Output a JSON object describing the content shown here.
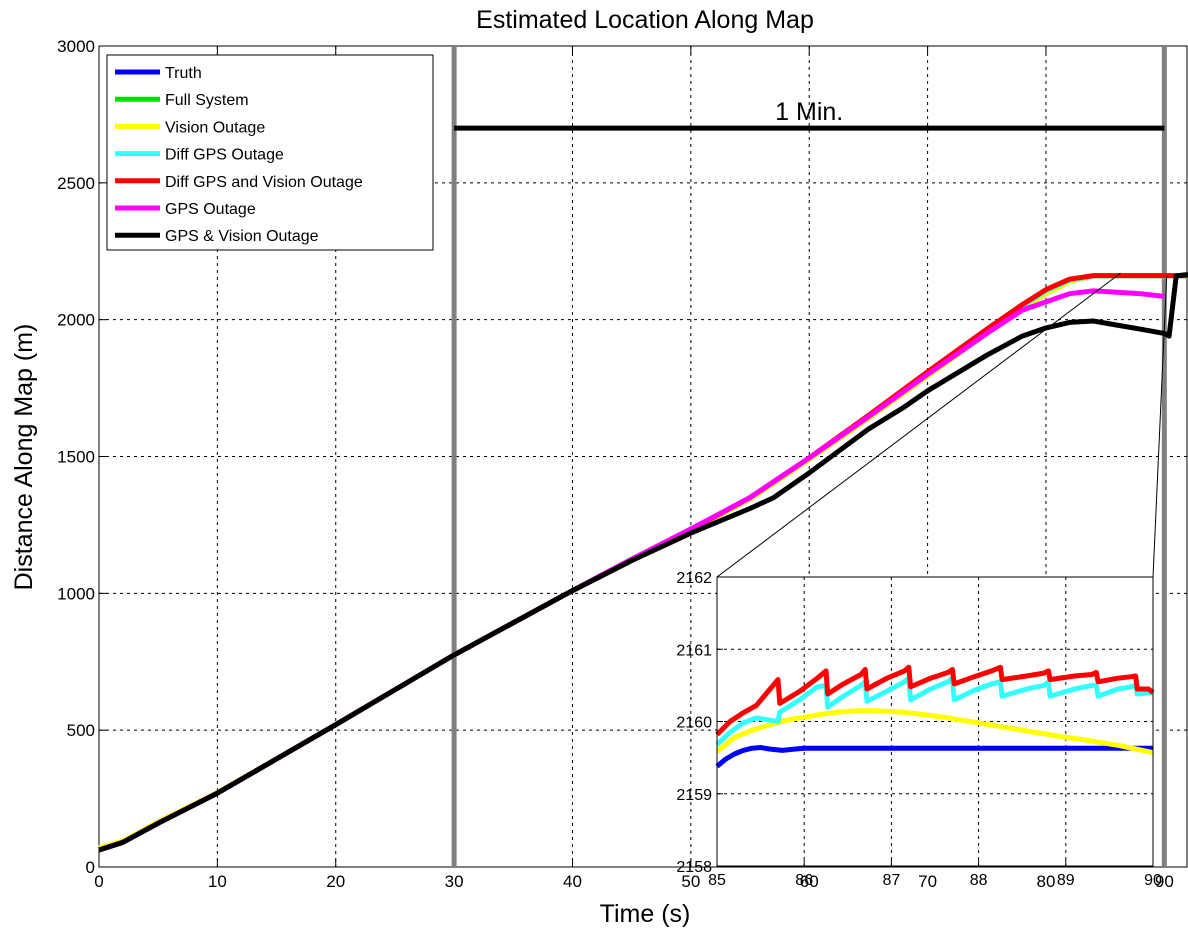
{
  "chart_data": [
    {
      "type": "line",
      "title": "Estimated Location Along Map",
      "xlabel": "Time (s)",
      "ylabel": "Distance Along Map (m)",
      "xlim": [
        0,
        92
      ],
      "ylim": [
        0,
        3000
      ],
      "xticks": [
        "0",
        "10",
        "20",
        "30",
        "40",
        "50",
        "60",
        "70",
        "80",
        "90"
      ],
      "yticks": [
        "0",
        "500",
        "1000",
        "1500",
        "2000",
        "2500",
        "3000"
      ],
      "grid": true,
      "legend_position": "top-left",
      "series": [
        {
          "name": "Truth",
          "color": "#0000ff",
          "x": [
            0,
            2,
            5,
            10,
            20,
            30,
            40,
            45,
            50,
            55,
            60,
            65,
            70,
            75,
            78,
            80,
            82,
            84,
            86,
            88,
            90,
            92
          ],
          "y": [
            62,
            90,
            160,
            270,
            520,
            775,
            1010,
            1120,
            1230,
            1345,
            1490,
            1640,
            1795,
            1950,
            2040,
            2095,
            2140,
            2160,
            2160,
            2160,
            2160,
            2160
          ]
        },
        {
          "name": "Full System",
          "color": "#00e000",
          "x": [
            0,
            2,
            5,
            10,
            20,
            30,
            40,
            45,
            50,
            55,
            60,
            65,
            70,
            75,
            78,
            80,
            82,
            84,
            86,
            88,
            90,
            92
          ],
          "y": [
            62,
            90,
            160,
            270,
            520,
            775,
            1010,
            1120,
            1230,
            1345,
            1490,
            1640,
            1795,
            1950,
            2040,
            2095,
            2140,
            2160,
            2160,
            2160,
            2160,
            2160
          ]
        },
        {
          "name": "Vision Outage",
          "color": "#ffff00",
          "x": [
            0,
            2,
            5,
            10,
            20,
            30,
            40,
            45,
            50,
            55,
            60,
            65,
            70,
            75,
            78,
            80,
            82,
            84,
            86,
            88,
            90,
            92
          ],
          "y": [
            70,
            95,
            165,
            272,
            520,
            775,
            1010,
            1120,
            1230,
            1345,
            1490,
            1640,
            1795,
            1950,
            2040,
            2095,
            2140,
            2160,
            2160,
            2160,
            2160,
            2160
          ]
        },
        {
          "name": "Diff GPS Outage",
          "color": "#33ffff",
          "x": [
            0,
            2,
            5,
            10,
            20,
            30,
            40,
            45,
            50,
            55,
            60,
            65,
            70,
            75,
            78,
            80,
            82,
            84,
            86,
            88,
            90,
            92
          ],
          "y": [
            62,
            90,
            160,
            270,
            520,
            775,
            1010,
            1120,
            1232,
            1350,
            1495,
            1648,
            1805,
            1960,
            2050,
            2105,
            2145,
            2160,
            2160,
            2160,
            2160,
            2160
          ]
        },
        {
          "name": "Diff GPS and Vision Outage",
          "color": "#ff0000",
          "x": [
            0,
            2,
            5,
            10,
            20,
            30,
            40,
            45,
            50,
            55,
            60,
            65,
            70,
            75,
            78,
            80,
            82,
            84,
            86,
            88,
            90,
            92
          ],
          "y": [
            62,
            90,
            160,
            270,
            520,
            775,
            1010,
            1120,
            1232,
            1350,
            1495,
            1650,
            1810,
            1965,
            2055,
            2110,
            2148,
            2161,
            2161,
            2161,
            2161,
            2161
          ]
        },
        {
          "name": "GPS Outage",
          "color": "#ff00ff",
          "x": [
            0,
            2,
            5,
            10,
            20,
            30,
            40,
            45,
            50,
            55,
            60,
            65,
            70,
            75,
            78,
            80,
            82,
            84,
            86,
            88,
            90
          ],
          "y": [
            62,
            90,
            160,
            270,
            520,
            775,
            1010,
            1125,
            1235,
            1350,
            1495,
            1645,
            1800,
            1950,
            2035,
            2065,
            2095,
            2105,
            2100,
            2095,
            2085
          ]
        },
        {
          "name": "GPS & Vision Outage",
          "color": "#000000",
          "x": [
            0,
            2,
            5,
            10,
            20,
            30,
            40,
            45,
            48,
            50,
            55,
            57,
            60,
            65,
            68,
            70,
            75,
            78,
            80,
            82,
            84,
            86,
            88,
            90,
            90.4,
            91,
            92
          ],
          "y": [
            62,
            90,
            160,
            270,
            520,
            775,
            1010,
            1120,
            1180,
            1220,
            1310,
            1350,
            1440,
            1600,
            1680,
            1740,
            1870,
            1940,
            1970,
            1990,
            1995,
            1980,
            1965,
            1950,
            1940,
            2160,
            2165
          ]
        }
      ],
      "annotations": [
        {
          "text": "1 Min.",
          "x_range": [
            30,
            90
          ],
          "y": 2700
        },
        {
          "type": "vline",
          "x": 30
        },
        {
          "type": "vline",
          "x": 90
        }
      ]
    },
    {
      "type": "line",
      "title": "",
      "xlim": [
        85,
        90
      ],
      "ylim": [
        2158,
        2162
      ],
      "xticks": [
        "85",
        "86",
        "87",
        "88",
        "89",
        "90"
      ],
      "yticks": [
        "2158",
        "2159",
        "2160",
        "2161",
        "2162"
      ],
      "grid": true,
      "series": [
        {
          "name": "Truth",
          "color": "#0000ff",
          "x": [
            85,
            85.1,
            85.2,
            85.3,
            85.4,
            85.5,
            85.6,
            85.75,
            85.9,
            86,
            86.5,
            87,
            87.5,
            88,
            88.5,
            89,
            89.5,
            90
          ],
          "y": [
            2159.38,
            2159.48,
            2159.55,
            2159.6,
            2159.63,
            2159.64,
            2159.62,
            2159.6,
            2159.62,
            2159.63,
            2159.63,
            2159.63,
            2159.63,
            2159.63,
            2159.63,
            2159.63,
            2159.63,
            2159.63
          ]
        },
        {
          "name": "Vision Outage",
          "color": "#ffff00",
          "x": [
            85,
            85.2,
            85.4,
            85.6,
            85.8,
            86,
            86.2,
            86.4,
            86.6,
            86.8,
            87,
            87.2,
            87.4,
            87.6,
            87.8,
            88,
            88.2,
            88.4,
            88.6,
            88.8,
            89,
            89.2,
            89.4,
            89.6,
            89.8,
            90
          ],
          "y": [
            2159.58,
            2159.78,
            2159.88,
            2159.95,
            2160.02,
            2160.06,
            2160.1,
            2160.13,
            2160.15,
            2160.15,
            2160.14,
            2160.12,
            2160.09,
            2160.06,
            2160.02,
            2159.98,
            2159.94,
            2159.9,
            2159.86,
            2159.82,
            2159.78,
            2159.75,
            2159.71,
            2159.67,
            2159.62,
            2159.57
          ]
        },
        {
          "name": "Diff GPS Outage",
          "color": "#33ffff",
          "x": [
            85,
            85.15,
            85.3,
            85.45,
            85.7,
            85.72,
            85.95,
            86.15,
            86.25,
            86.27,
            86.45,
            86.65,
            86.7,
            86.72,
            86.95,
            87.15,
            87.2,
            87.22,
            87.45,
            87.65,
            87.7,
            87.72,
            87.95,
            88.15,
            88.25,
            88.27,
            88.55,
            88.75,
            88.8,
            88.82,
            89.1,
            89.3,
            89.35,
            89.37,
            89.6,
            89.75,
            89.8,
            89.82,
            89.95,
            90
          ],
          "y": [
            2159.68,
            2159.85,
            2159.98,
            2160.05,
            2160.0,
            2160.13,
            2160.3,
            2160.48,
            2160.5,
            2160.2,
            2160.35,
            2160.5,
            2160.55,
            2160.28,
            2160.42,
            2160.55,
            2160.6,
            2160.3,
            2160.45,
            2160.55,
            2160.6,
            2160.3,
            2160.43,
            2160.52,
            2160.55,
            2160.35,
            2160.45,
            2160.5,
            2160.55,
            2160.35,
            2160.45,
            2160.5,
            2160.5,
            2160.35,
            2160.45,
            2160.48,
            2160.5,
            2160.38,
            2160.4,
            2160.4
          ]
        },
        {
          "name": "Diff GPS and Vision Outage",
          "color": "#ff0000",
          "x": [
            85,
            85.15,
            85.3,
            85.45,
            85.7,
            85.72,
            85.95,
            86.15,
            86.25,
            86.27,
            86.45,
            86.65,
            86.7,
            86.72,
            86.95,
            87.15,
            87.2,
            87.22,
            87.45,
            87.65,
            87.7,
            87.72,
            87.95,
            88.15,
            88.25,
            88.27,
            88.55,
            88.75,
            88.8,
            88.82,
            89.1,
            89.3,
            89.35,
            89.37,
            89.6,
            89.75,
            89.8,
            89.82,
            89.95,
            90
          ],
          "y": [
            2159.82,
            2160.0,
            2160.12,
            2160.22,
            2160.58,
            2160.25,
            2160.42,
            2160.6,
            2160.7,
            2160.38,
            2160.52,
            2160.65,
            2160.72,
            2160.45,
            2160.6,
            2160.7,
            2160.75,
            2160.48,
            2160.6,
            2160.68,
            2160.72,
            2160.52,
            2160.62,
            2160.7,
            2160.75,
            2160.58,
            2160.63,
            2160.67,
            2160.7,
            2160.58,
            2160.63,
            2160.65,
            2160.68,
            2160.55,
            2160.6,
            2160.62,
            2160.63,
            2160.45,
            2160.45,
            2160.4
          ]
        }
      ]
    }
  ]
}
